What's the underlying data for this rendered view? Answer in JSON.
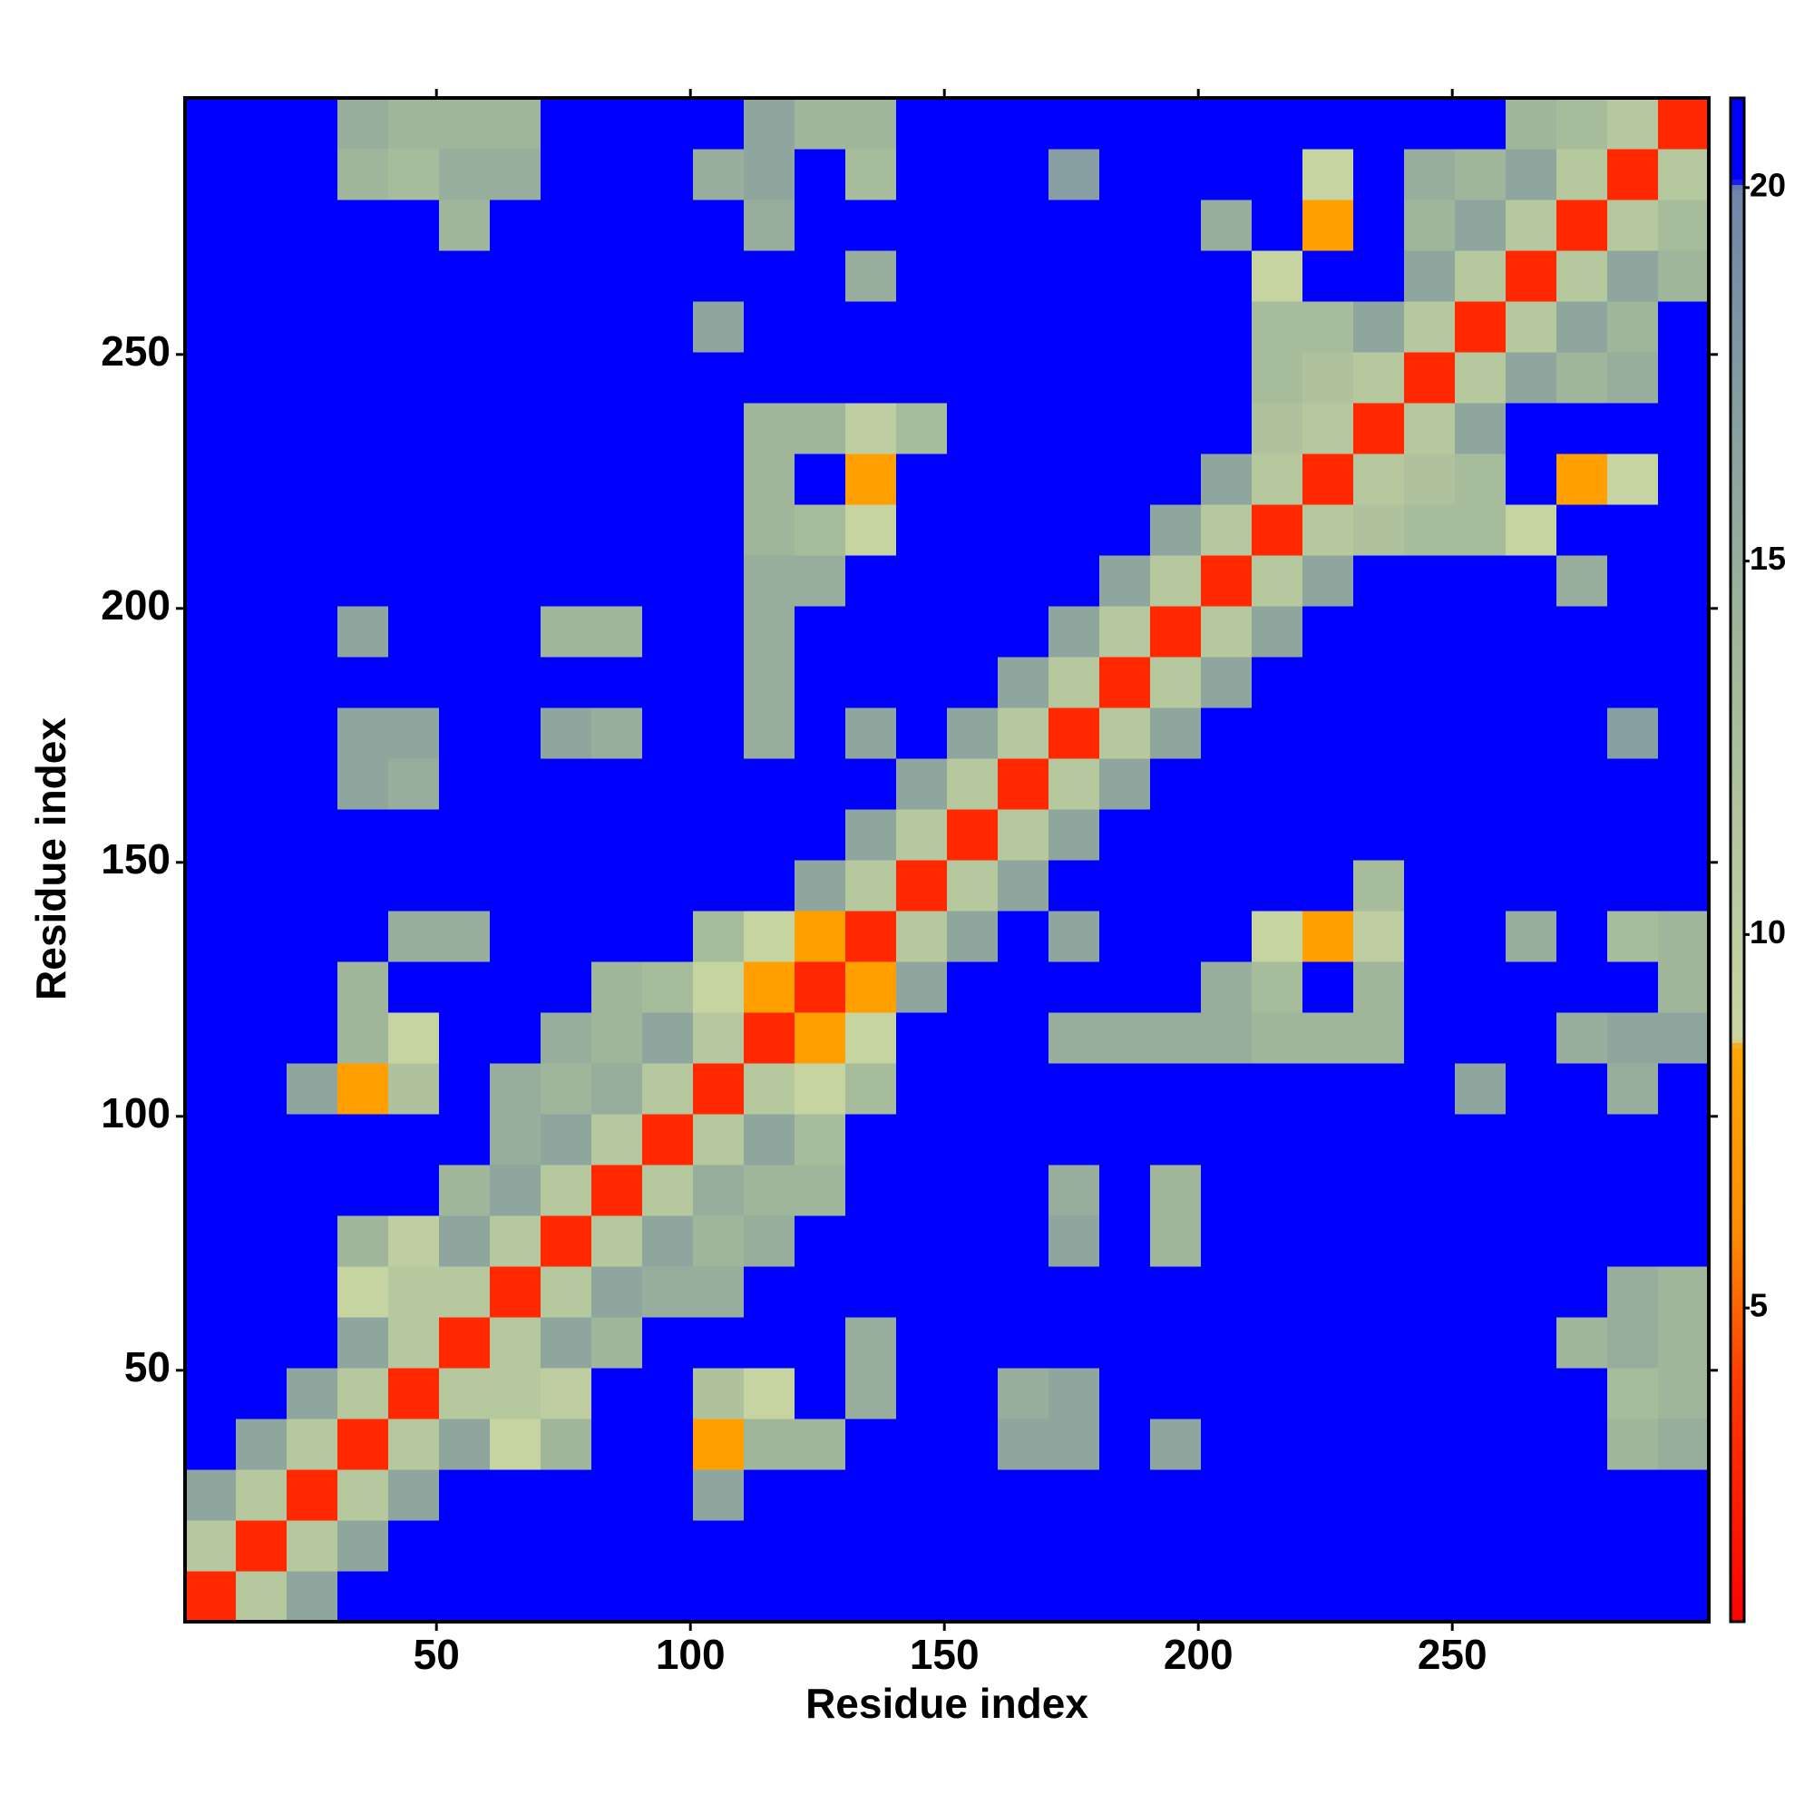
{
  "chart_data": {
    "type": "heatmap",
    "x_label": "Residue index",
    "y_label": "Residue index",
    "xlim": [
      0.5,
      300.5
    ],
    "ylim": [
      0.5,
      300.5
    ],
    "xticks": [
      50,
      100,
      150,
      200,
      250
    ],
    "yticks": [
      50,
      100,
      150,
      200,
      250
    ],
    "x_bins": [
      0.5,
      10.5,
      20.5,
      30.5,
      40.5,
      50.5,
      60.5,
      70.5,
      80.5,
      90.5,
      100.5,
      110.5,
      120.5,
      130.5,
      140.5,
      150.5,
      160.5,
      170.5,
      180.5,
      190.5,
      200.5,
      210.5,
      220.5,
      230.5,
      240.5,
      250.5,
      260.5,
      270.5,
      280.5,
      290.5,
      300.5
    ],
    "y_bins": [
      0.5,
      10.5,
      20.5,
      30.5,
      40.5,
      50.5,
      60.5,
      70.5,
      80.5,
      90.5,
      100.5,
      110.5,
      120.5,
      130.5,
      140.5,
      150.5,
      160.5,
      170.5,
      180.5,
      190.5,
      200.5,
      210.5,
      220.5,
      230.5,
      240.5,
      250.5,
      260.5,
      270.5,
      280.5,
      290.5,
      300.5
    ],
    "z": [
      [
        3,
        11,
        16,
        21,
        21,
        21,
        21,
        21,
        21,
        21,
        21,
        21,
        21,
        21,
        21,
        21,
        21,
        21,
        21,
        21,
        21,
        21,
        21,
        21,
        21,
        21,
        21,
        21,
        21,
        21
      ],
      [
        11,
        3,
        11,
        16,
        21,
        21,
        21,
        21,
        21,
        21,
        21,
        21,
        21,
        21,
        21,
        21,
        21,
        21,
        21,
        21,
        21,
        21,
        21,
        21,
        21,
        21,
        21,
        21,
        21,
        21
      ],
      [
        16,
        11,
        3,
        11,
        16,
        21,
        21,
        21,
        21,
        21,
        16,
        21,
        21,
        21,
        21,
        21,
        21,
        21,
        21,
        21,
        21,
        21,
        21,
        21,
        21,
        21,
        21,
        21,
        21,
        21
      ],
      [
        21,
        16,
        11,
        3,
        11,
        16,
        9,
        14,
        21,
        21,
        8,
        14,
        14,
        21,
        21,
        21,
        16,
        16,
        21,
        16,
        21,
        21,
        21,
        21,
        21,
        21,
        21,
        21,
        14,
        15
      ],
      [
        21,
        21,
        16,
        11,
        3,
        11,
        11,
        10,
        21,
        21,
        12,
        9,
        21,
        15,
        21,
        21,
        15,
        16,
        21,
        21,
        21,
        21,
        21,
        21,
        21,
        21,
        21,
        21,
        13,
        14
      ],
      [
        21,
        21,
        21,
        16,
        11,
        3,
        11,
        16,
        14,
        21,
        21,
        21,
        21,
        15,
        21,
        21,
        21,
        21,
        21,
        21,
        21,
        21,
        21,
        21,
        21,
        21,
        21,
        14,
        15,
        14
      ],
      [
        21,
        21,
        21,
        9,
        11,
        11,
        3,
        11,
        16,
        15,
        15,
        21,
        21,
        21,
        21,
        21,
        21,
        21,
        21,
        21,
        21,
        21,
        21,
        21,
        21,
        21,
        21,
        21,
        15,
        14
      ],
      [
        21,
        21,
        21,
        14,
        10,
        16,
        11,
        3,
        11,
        16,
        14,
        15,
        21,
        21,
        21,
        21,
        21,
        16,
        21,
        14,
        21,
        21,
        21,
        21,
        21,
        21,
        21,
        21,
        21,
        21
      ],
      [
        21,
        21,
        21,
        21,
        21,
        14,
        16,
        11,
        3,
        11,
        15,
        14,
        14,
        21,
        21,
        21,
        21,
        15,
        21,
        14,
        21,
        21,
        21,
        21,
        21,
        21,
        21,
        21,
        21,
        21
      ],
      [
        21,
        21,
        21,
        21,
        21,
        21,
        15,
        16,
        11,
        3,
        11,
        16,
        13,
        21,
        21,
        21,
        21,
        21,
        21,
        21,
        21,
        21,
        21,
        21,
        21,
        21,
        21,
        21,
        21,
        21
      ],
      [
        21,
        21,
        16,
        8,
        12,
        21,
        15,
        14,
        15,
        11,
        3,
        11,
        9,
        13,
        21,
        21,
        21,
        21,
        21,
        21,
        21,
        21,
        21,
        21,
        21,
        16,
        21,
        21,
        15,
        21
      ],
      [
        21,
        21,
        21,
        14,
        9,
        21,
        21,
        15,
        14,
        16,
        11,
        3,
        8,
        9,
        21,
        21,
        21,
        15,
        15,
        15,
        15,
        14,
        14,
        14,
        21,
        21,
        21,
        15,
        16,
        16
      ],
      [
        21,
        21,
        21,
        14,
        21,
        21,
        21,
        21,
        14,
        13,
        9,
        8,
        3,
        8,
        16,
        21,
        21,
        21,
        21,
        21,
        15,
        13,
        21,
        14,
        21,
        21,
        21,
        21,
        21,
        14
      ],
      [
        21,
        21,
        21,
        21,
        15,
        15,
        21,
        21,
        21,
        21,
        13,
        9,
        8,
        3,
        11,
        16,
        21,
        16,
        21,
        21,
        21,
        9,
        8,
        10,
        21,
        21,
        15,
        21,
        13,
        14
      ],
      [
        21,
        21,
        21,
        21,
        21,
        21,
        21,
        21,
        21,
        21,
        21,
        21,
        16,
        11,
        3,
        11,
        16,
        21,
        21,
        21,
        21,
        21,
        21,
        13,
        21,
        21,
        21,
        21,
        21,
        21
      ],
      [
        21,
        21,
        21,
        21,
        21,
        21,
        21,
        21,
        21,
        21,
        21,
        21,
        21,
        16,
        11,
        3,
        11,
        16,
        21,
        21,
        21,
        21,
        21,
        21,
        21,
        21,
        21,
        21,
        21,
        21
      ],
      [
        21,
        21,
        21,
        16,
        15,
        21,
        21,
        21,
        21,
        21,
        21,
        21,
        21,
        21,
        16,
        11,
        3,
        11,
        16,
        21,
        21,
        21,
        21,
        21,
        21,
        21,
        21,
        21,
        21,
        21
      ],
      [
        21,
        21,
        21,
        16,
        16,
        21,
        21,
        16,
        15,
        21,
        21,
        15,
        21,
        16,
        21,
        16,
        11,
        3,
        11,
        16,
        21,
        21,
        21,
        21,
        21,
        21,
        21,
        21,
        17,
        21
      ],
      [
        21,
        21,
        21,
        21,
        21,
        21,
        21,
        21,
        21,
        21,
        21,
        15,
        21,
        21,
        21,
        21,
        16,
        11,
        3,
        11,
        16,
        21,
        21,
        21,
        21,
        21,
        21,
        21,
        21,
        21
      ],
      [
        21,
        21,
        21,
        16,
        21,
        21,
        21,
        14,
        14,
        21,
        21,
        15,
        21,
        21,
        21,
        21,
        21,
        16,
        11,
        3,
        11,
        16,
        21,
        21,
        21,
        21,
        21,
        21,
        21,
        21
      ],
      [
        21,
        21,
        21,
        21,
        21,
        21,
        21,
        21,
        21,
        21,
        21,
        15,
        15,
        21,
        21,
        21,
        21,
        21,
        16,
        11,
        3,
        11,
        16,
        21,
        21,
        21,
        21,
        15,
        21,
        21
      ],
      [
        21,
        21,
        21,
        21,
        21,
        21,
        21,
        21,
        21,
        21,
        21,
        14,
        13,
        9,
        21,
        21,
        21,
        21,
        21,
        16,
        11,
        3,
        11,
        12,
        13,
        13,
        9,
        21,
        21,
        21
      ],
      [
        21,
        21,
        21,
        21,
        21,
        21,
        21,
        21,
        21,
        21,
        21,
        14,
        21,
        8,
        21,
        21,
        21,
        21,
        21,
        21,
        16,
        11,
        3,
        11,
        12,
        13,
        21,
        8,
        9,
        21
      ],
      [
        21,
        21,
        21,
        21,
        21,
        21,
        21,
        21,
        21,
        21,
        21,
        14,
        14,
        10,
        13,
        21,
        21,
        21,
        21,
        21,
        21,
        12,
        11,
        3,
        11,
        16,
        21,
        21,
        21,
        21
      ],
      [
        21,
        21,
        21,
        21,
        21,
        21,
        21,
        21,
        21,
        21,
        21,
        21,
        21,
        21,
        21,
        21,
        21,
        21,
        21,
        21,
        21,
        13,
        12,
        11,
        3,
        11,
        16,
        14,
        15,
        21
      ],
      [
        21,
        21,
        21,
        21,
        21,
        21,
        21,
        21,
        21,
        21,
        16,
        21,
        21,
        21,
        21,
        21,
        21,
        21,
        21,
        21,
        21,
        13,
        13,
        16,
        11,
        3,
        11,
        16,
        14,
        21
      ],
      [
        21,
        21,
        21,
        21,
        21,
        21,
        21,
        21,
        21,
        21,
        21,
        21,
        21,
        15,
        21,
        21,
        21,
        21,
        21,
        21,
        21,
        9,
        21,
        21,
        16,
        11,
        3,
        11,
        16,
        14
      ],
      [
        21,
        21,
        21,
        21,
        21,
        14,
        21,
        21,
        21,
        21,
        21,
        15,
        21,
        21,
        21,
        21,
        21,
        21,
        21,
        21,
        15,
        21,
        8,
        21,
        14,
        16,
        11,
        3,
        11,
        13
      ],
      [
        21,
        21,
        21,
        14,
        13,
        15,
        15,
        21,
        21,
        21,
        15,
        16,
        21,
        13,
        21,
        21,
        21,
        17,
        21,
        21,
        21,
        21,
        9,
        21,
        15,
        14,
        16,
        11,
        3,
        11
      ],
      [
        21,
        21,
        21,
        15,
        14,
        14,
        14,
        21,
        21,
        21,
        21,
        16,
        14,
        14,
        21,
        21,
        21,
        21,
        21,
        21,
        21,
        21,
        21,
        21,
        21,
        21,
        14,
        13,
        11,
        3
      ]
    ],
    "colorbar": {
      "lim": [
        0.8,
        21.2
      ],
      "ticks": [
        5,
        10,
        15,
        20
      ],
      "scale": [
        [
          0.8,
          "#ff0000"
        ],
        [
          4,
          "#ff3a00"
        ],
        [
          6,
          "#ff8c00"
        ],
        [
          8.5,
          "#ffa500"
        ],
        [
          8.6,
          "#c9d6a2"
        ],
        [
          14,
          "#9fb69a"
        ],
        [
          20,
          "#6f86aa"
        ],
        [
          20.1,
          "#0000ff"
        ],
        [
          21.2,
          "#0000ff"
        ]
      ]
    }
  }
}
